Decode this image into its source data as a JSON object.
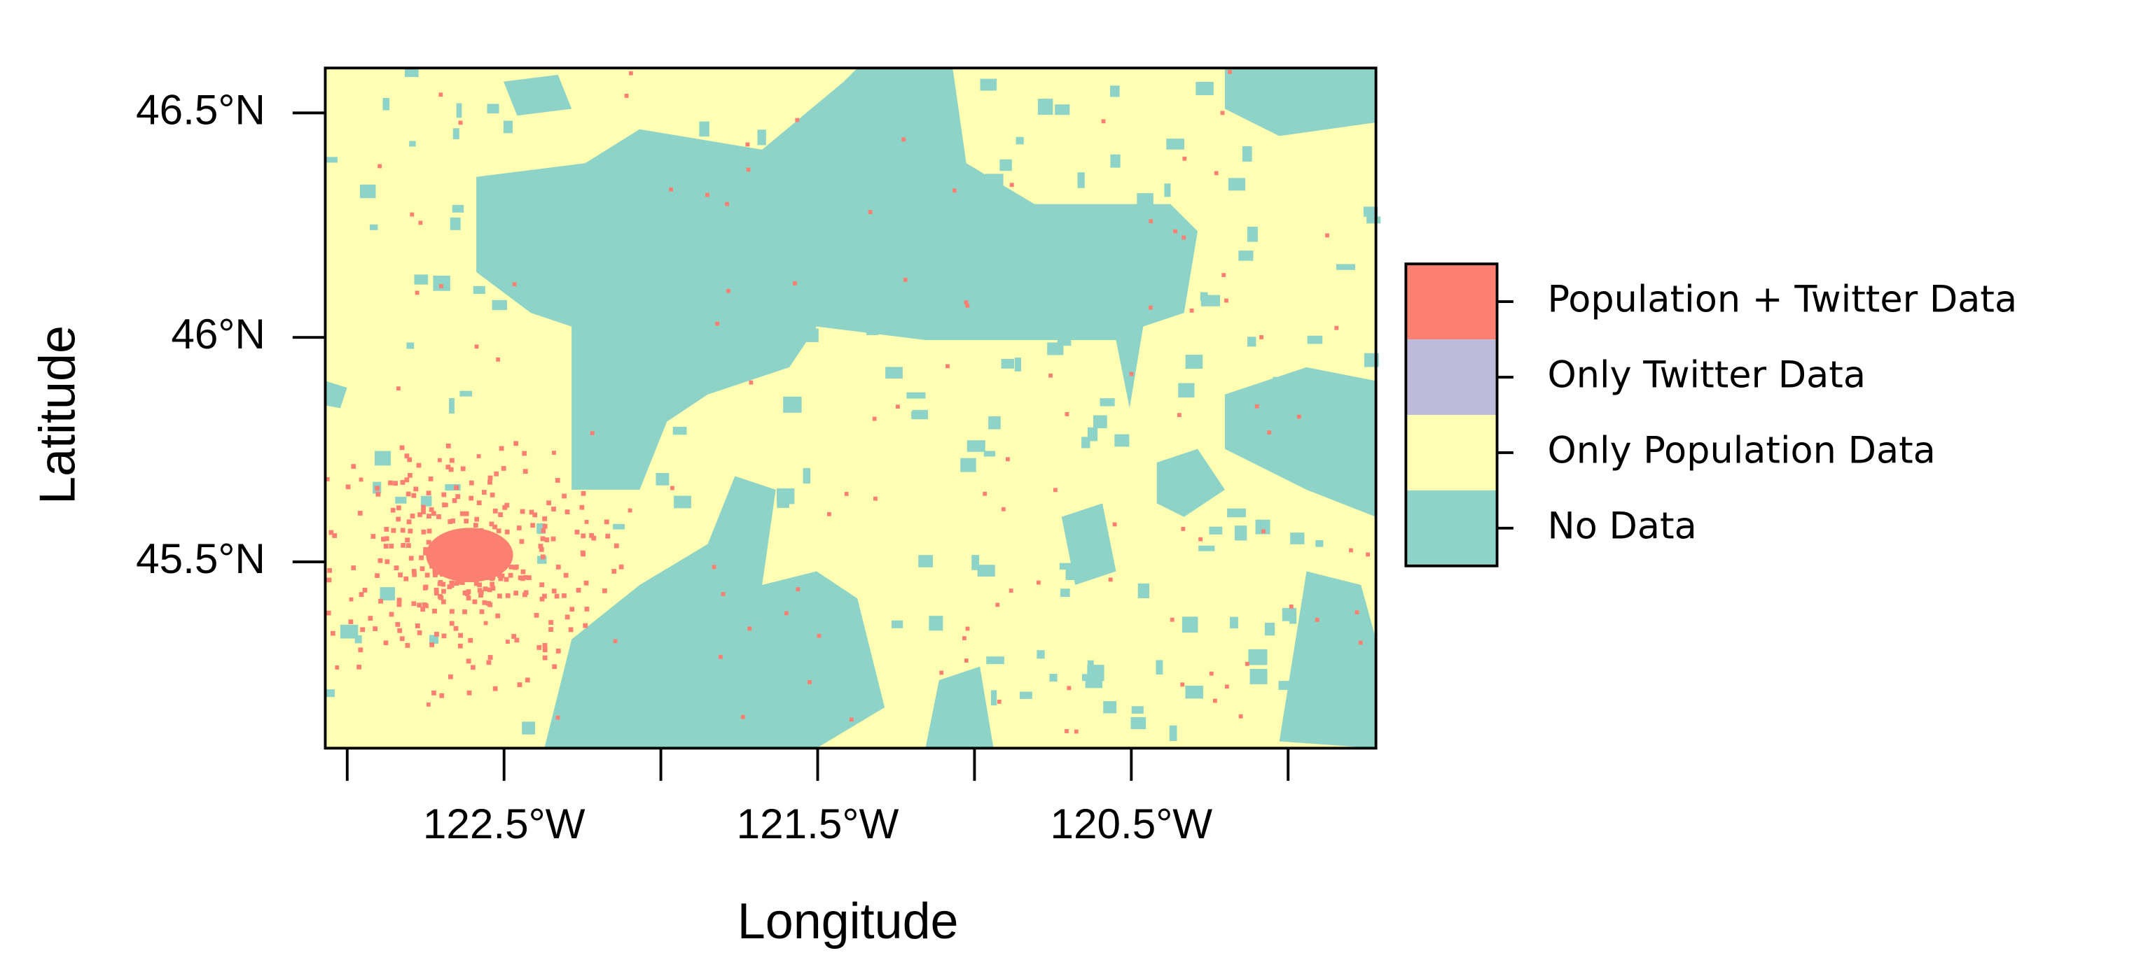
{
  "chart_data": {
    "type": "map",
    "xlabel": "Longitude",
    "ylabel": "Latitude",
    "xlim": [
      -123.07,
      -119.72
    ],
    "ylim": [
      45.085,
      46.6
    ],
    "xticks": [
      {
        "value": -123,
        "label": null
      },
      {
        "value": -122.5,
        "label": "122.5°W"
      },
      {
        "value": -122,
        "label": null
      },
      {
        "value": -121.5,
        "label": "121.5°W"
      },
      {
        "value": -121,
        "label": null
      },
      {
        "value": -120.5,
        "label": "120.5°W"
      },
      {
        "value": -120,
        "label": null
      }
    ],
    "yticks": [
      {
        "value": 45.5,
        "label": "45.5°N"
      },
      {
        "value": 46,
        "label": "46°N"
      },
      {
        "value": 46.5,
        "label": "46.5°N"
      }
    ],
    "legend": {
      "position": "right",
      "items": [
        {
          "label": "Population + Twitter Data",
          "color": "#fb8072"
        },
        {
          "label": "Only Twitter Data",
          "color": "#bebada"
        },
        {
          "label": "Only Population Data",
          "color": "#ffffb3"
        },
        {
          "label": "No Data",
          "color": "#8dd3c7"
        }
      ]
    }
  }
}
